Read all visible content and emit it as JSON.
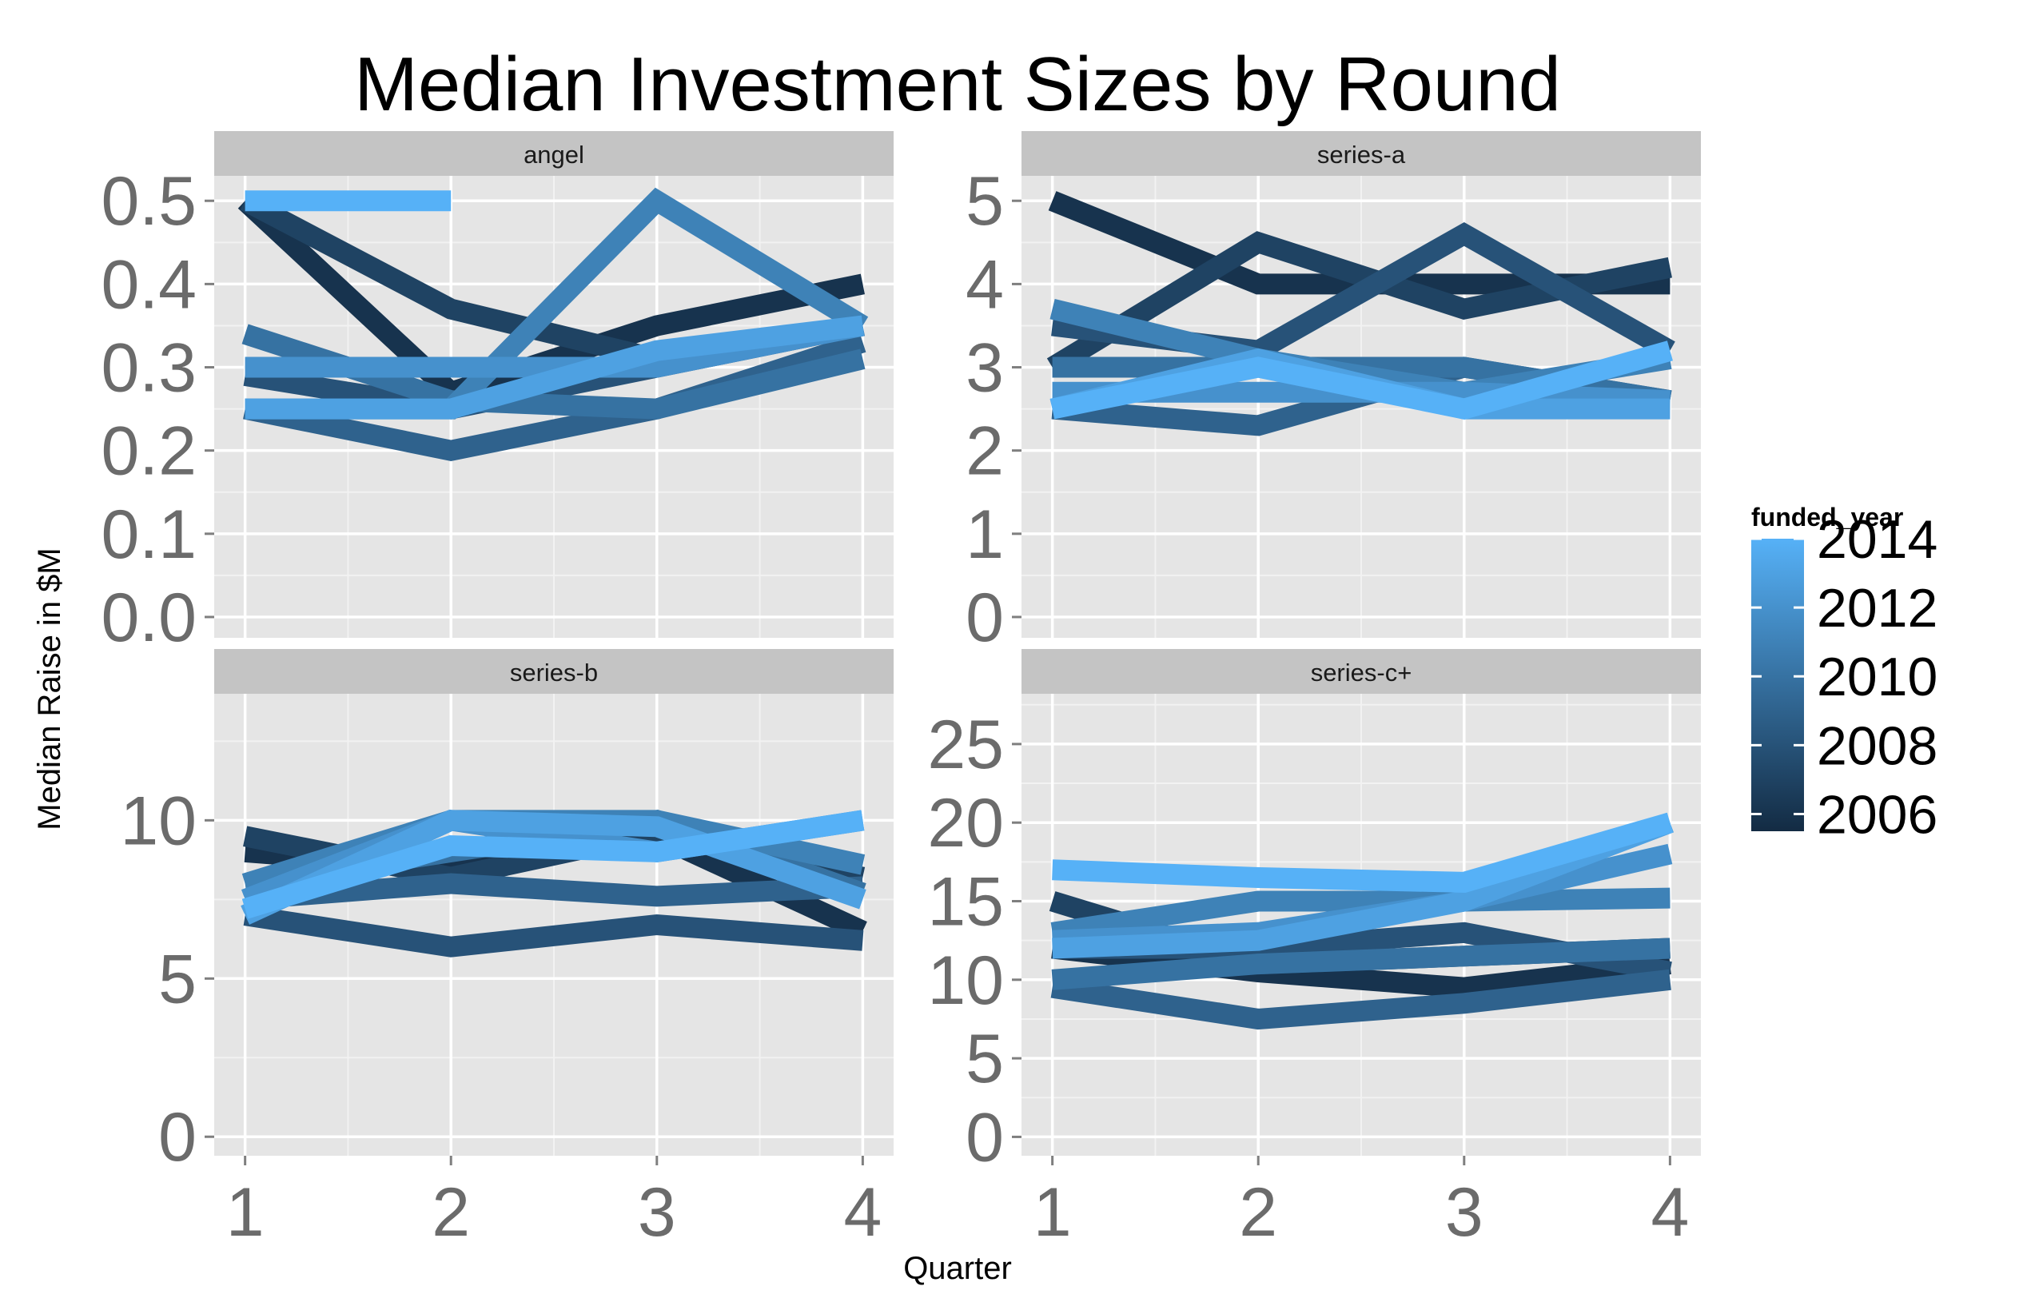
{
  "chart_data": {
    "type": "line",
    "title": "Median Investment Sizes by Round",
    "xlabel": "Quarter",
    "ylabel": "Median Raise in $M",
    "x": [
      1,
      2,
      3,
      4
    ],
    "xticks": [
      "1",
      "2",
      "3",
      "4"
    ],
    "grid": true,
    "legend": {
      "title": "funded_year",
      "placement": "right",
      "type": "colorbar",
      "ticks": [
        "2006",
        "2008",
        "2010",
        "2012",
        "2014"
      ],
      "low": "#132B43",
      "high": "#56B1F7",
      "range": [
        2005.5,
        2014
      ]
    },
    "facets": [
      {
        "name": "angel",
        "ylim": [
          -0.025,
          0.53
        ],
        "yticks": [
          0.0,
          0.1,
          0.2,
          0.3,
          0.4,
          0.5
        ],
        "ytick_labels": [
          "0.0",
          "0.1",
          "0.2",
          "0.3",
          "0.4",
          "0.5"
        ],
        "series": [
          {
            "year": 2006,
            "values": [
              0.5,
              0.27,
              0.35,
              0.4
            ]
          },
          {
            "year": 2007,
            "values": [
              0.5,
              0.37,
              0.31,
              0.35
            ]
          },
          {
            "year": 2008,
            "values": [
              0.29,
              0.25,
              0.3,
              0.35
            ]
          },
          {
            "year": 2009,
            "values": [
              0.25,
              0.2,
              0.25,
              0.33
            ]
          },
          {
            "year": 2010,
            "values": [
              0.34,
              0.26,
              0.25,
              0.31
            ]
          },
          {
            "year": 2011,
            "values": [
              0.25,
              0.25,
              0.5,
              0.35
            ]
          },
          {
            "year": 2012,
            "values": [
              0.3,
              0.3,
              0.3,
              0.35
            ]
          },
          {
            "year": 2013,
            "values": [
              0.25,
              0.25,
              0.32,
              0.35
            ]
          },
          {
            "year": 2014,
            "values": [
              0.5,
              0.5,
              null,
              null
            ]
          }
        ]
      },
      {
        "name": "series-a",
        "ylim": [
          -0.25,
          5.3
        ],
        "yticks": [
          0,
          1,
          2,
          3,
          4,
          5
        ],
        "ytick_labels": [
          "0",
          "1",
          "2",
          "3",
          "4",
          "5"
        ],
        "series": [
          {
            "year": 2006,
            "values": [
              5.0,
              4.0,
              4.0,
              4.0
            ]
          },
          {
            "year": 2007,
            "values": [
              3.0,
              4.5,
              3.7,
              4.2
            ]
          },
          {
            "year": 2008,
            "values": [
              3.5,
              3.2,
              4.6,
              3.2
            ]
          },
          {
            "year": 2009,
            "values": [
              2.5,
              2.3,
              3.0,
              2.6
            ]
          },
          {
            "year": 2010,
            "values": [
              3.0,
              3.0,
              3.0,
              2.6
            ]
          },
          {
            "year": 2011,
            "values": [
              3.7,
              3.1,
              2.7,
              3.1
            ]
          },
          {
            "year": 2012,
            "values": [
              2.7,
              2.7,
              2.7,
              2.6
            ]
          },
          {
            "year": 2013,
            "values": [
              2.5,
              3.1,
              2.5,
              2.5
            ]
          },
          {
            "year": 2014,
            "values": [
              2.5,
              3.0,
              2.5,
              3.2
            ]
          }
        ]
      },
      {
        "name": "series-b",
        "ylim": [
          -0.6,
          14.0
        ],
        "yticks": [
          0,
          5,
          10
        ],
        "ytick_labels": [
          "0",
          "5",
          "10"
        ],
        "series": [
          {
            "year": 2006,
            "values": [
              9.0,
              8.5,
              9.5,
              6.5
            ]
          },
          {
            "year": 2007,
            "values": [
              9.5,
              8.2,
              9.6,
              8.2
            ]
          },
          {
            "year": 2008,
            "values": [
              7.0,
              6.0,
              6.7,
              6.2
            ]
          },
          {
            "year": 2009,
            "values": [
              7.5,
              8.0,
              7.6,
              7.9
            ]
          },
          {
            "year": 2010,
            "values": [
              8.0,
              9.0,
              10.0,
              7.7
            ]
          },
          {
            "year": 2011,
            "values": [
              8.0,
              10.0,
              10.0,
              8.6
            ]
          },
          {
            "year": 2012,
            "values": [
              7.5,
              10.0,
              9.0,
              10.0
            ]
          },
          {
            "year": 2013,
            "values": [
              7.0,
              10.0,
              9.8,
              7.5
            ]
          },
          {
            "year": 2014,
            "values": [
              7.2,
              9.2,
              9.0,
              10.0
            ]
          }
        ]
      },
      {
        "name": "series-c+",
        "ylim": [
          -1.2,
          28.2
        ],
        "yticks": [
          0,
          5,
          10,
          15,
          20,
          25
        ],
        "ytick_labels": [
          "0",
          "5",
          "10",
          "15",
          "20",
          "25"
        ],
        "series": [
          {
            "year": 2006,
            "values": [
              12.0,
              10.5,
              9.5,
              11.0
            ]
          },
          {
            "year": 2007,
            "values": [
              15.0,
              11.0,
              11.5,
              12.0
            ]
          },
          {
            "year": 2008,
            "values": [
              12.0,
              12.0,
              13.0,
              10.5
            ]
          },
          {
            "year": 2009,
            "values": [
              9.5,
              7.5,
              8.5,
              10.0
            ]
          },
          {
            "year": 2010,
            "values": [
              10.0,
              11.0,
              11.5,
              12.0
            ]
          },
          {
            "year": 2011,
            "values": [
              13.0,
              15.0,
              15.0,
              15.2
            ]
          },
          {
            "year": 2012,
            "values": [
              12.5,
              13.0,
              15.0,
              18.0
            ]
          },
          {
            "year": 2013,
            "values": [
              12.0,
              12.5,
              15.0,
              20.0
            ]
          },
          {
            "year": 2014,
            "values": [
              17.0,
              16.5,
              16.2,
              20.0
            ]
          }
        ]
      }
    ]
  }
}
